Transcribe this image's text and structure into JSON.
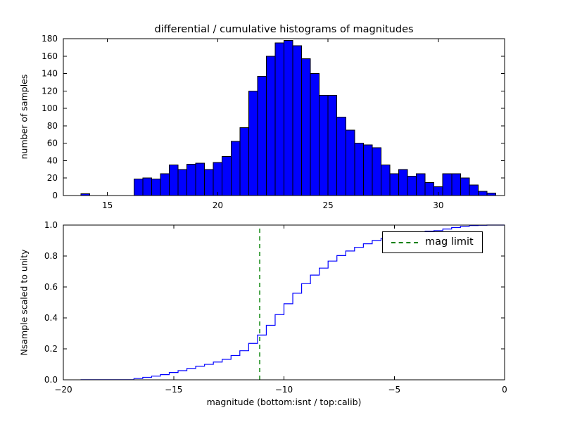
{
  "figure": {
    "background": "#ffffff",
    "title": "differential / cumulative histograms of magnitudes"
  },
  "chart_data": [
    {
      "type": "bar",
      "subtype": "histogram",
      "title": "differential / cumulative histograms of magnitudes",
      "xlabel": "",
      "ylabel": "number of samples",
      "bar_color": "#0000ff",
      "bar_edge_color": "#000000",
      "bin_start": 13.8,
      "bin_width": 0.4,
      "values": [
        2,
        0,
        0,
        0,
        0,
        0,
        19,
        20,
        19,
        25,
        35,
        30,
        36,
        37,
        30,
        38,
        45,
        62,
        78,
        120,
        137,
        160,
        175,
        178,
        172,
        157,
        140,
        115,
        115,
        90,
        75,
        60,
        58,
        55,
        35,
        25,
        30,
        22,
        25,
        15,
        10,
        25,
        25,
        20,
        12,
        5,
        3
      ],
      "xlim": [
        13,
        33
      ],
      "ylim": [
        0,
        180
      ],
      "xticks": [
        15,
        20,
        25,
        30
      ],
      "yticks": [
        0,
        20,
        40,
        60,
        80,
        100,
        120,
        140,
        160,
        180
      ],
      "xtick_decimals": 0,
      "ytick_decimals": 0,
      "grid": false
    },
    {
      "type": "line",
      "subtype": "cumulative-step-of-histogram",
      "title": "",
      "xlabel": "magnitude (bottom:isnt / top:calib)",
      "ylabel": "Nsample scaled to unity",
      "line_color": "#0000ff",
      "x_offset_from_top": -33,
      "xlim": [
        -20,
        0
      ],
      "ylim": [
        0,
        1
      ],
      "xticks": [
        -20,
        -15,
        -10,
        -5,
        0
      ],
      "yticks": [
        0,
        0.2,
        0.4,
        0.6,
        0.8,
        1.0
      ],
      "xtick_decimals": 0,
      "ytick_decimals": 1,
      "mag_limit": {
        "x": -11.1,
        "color": "#008000",
        "style": "dashed",
        "label": "mag limit"
      },
      "legend": {
        "position": "upper right",
        "entries": [
          "mag limit"
        ]
      },
      "grid": false
    }
  ]
}
